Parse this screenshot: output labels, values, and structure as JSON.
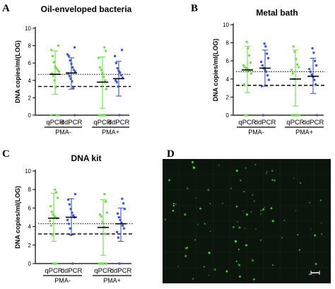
{
  "colors": {
    "qpcr": "#6fe04a",
    "ddpcr": "#3b57c8",
    "axis": "#000000",
    "micro_bg": "#0c150c",
    "micro_dot": "#3fe33a"
  },
  "chart_data": [
    {
      "panel": "A",
      "type": "scatter",
      "title": "Oil-enveloped bacteria",
      "ylabel": "DNA copies/ml(LOG)",
      "ylim": [
        0,
        10
      ],
      "yticks": [
        0,
        2,
        4,
        6,
        8,
        10
      ],
      "categories": [
        "qPCR",
        "ddPCR",
        "qPCR",
        "ddPCR"
      ],
      "groups": [
        {
          "label": "PMA-",
          "members": [
            0,
            1
          ]
        },
        {
          "label": "PMA+",
          "members": [
            2,
            3
          ]
        }
      ],
      "dotted_line": 4.7,
      "dashed_line": 3.3,
      "series": [
        {
          "method": "qpcr",
          "mean": 4.7,
          "err": [
            2.4,
            7.4
          ],
          "points": [
            0,
            0,
            0,
            3.2,
            4.0,
            4.5,
            4.8,
            5.0,
            5.2,
            5.4,
            5.6,
            6.1,
            6.8,
            7.5,
            8.0
          ]
        },
        {
          "method": "ddpcr",
          "mean": 4.85,
          "err": [
            3.0,
            6.6
          ],
          "points": [
            0,
            3.1,
            3.9,
            4.2,
            4.5,
            4.8,
            5.0,
            5.2,
            5.5,
            5.9,
            6.3,
            6.8,
            7.0,
            7.8
          ]
        },
        {
          "method": "qpcr",
          "mean": 3.8,
          "err": [
            0.8,
            6.7
          ],
          "points": [
            0,
            0,
            0,
            0,
            0,
            3.0,
            4.0,
            4.4,
            4.9,
            5.2,
            5.5,
            6.6,
            7.4,
            7.8
          ]
        },
        {
          "method": "ddpcr",
          "mean": 4.2,
          "err": [
            2.2,
            6.2
          ],
          "points": [
            0,
            3.3,
            3.8,
            4.0,
            4.3,
            4.6,
            4.9,
            5.1,
            5.4,
            6.0,
            6.8,
            7.5
          ]
        }
      ]
    },
    {
      "panel": "B",
      "type": "scatter",
      "title": "Metal bath",
      "ylabel": "DNA copies/ml(LOG)",
      "ylim": [
        0,
        10
      ],
      "yticks": [
        0,
        2,
        4,
        6,
        8,
        10
      ],
      "categories": [
        "qPCR",
        "ddPCR",
        "qPCR",
        "ddPCR"
      ],
      "groups": [
        {
          "label": "PMA-",
          "members": [
            0,
            1
          ]
        },
        {
          "label": "PMA+",
          "members": [
            2,
            3
          ]
        }
      ],
      "dotted_line": 4.8,
      "dashed_line": 3.3,
      "series": [
        {
          "method": "qpcr",
          "mean": 5.0,
          "err": [
            2.5,
            7.6
          ],
          "points": [
            0,
            0,
            3.4,
            4.6,
            4.9,
            5.0,
            5.1,
            5.2,
            5.3,
            5.5,
            5.8,
            6.6,
            7.4,
            8.1
          ]
        },
        {
          "method": "ddpcr",
          "mean": 5.2,
          "err": [
            3.2,
            7.2
          ],
          "points": [
            0,
            3.2,
            3.9,
            4.4,
            4.8,
            5.0,
            5.2,
            5.5,
            5.9,
            6.3,
            6.8,
            7.6,
            7.9
          ]
        },
        {
          "method": "qpcr",
          "mean": 4.0,
          "err": [
            1.0,
            7.2
          ],
          "points": [
            0,
            0,
            0,
            0,
            0,
            4.0,
            4.6,
            5.0,
            5.3,
            5.6,
            6.2,
            7.0,
            7.6
          ]
        },
        {
          "method": "ddpcr",
          "mean": 4.3,
          "err": [
            2.4,
            6.3
          ],
          "points": [
            0,
            3.4,
            3.9,
            4.2,
            4.5,
            4.8,
            5.1,
            5.5,
            6.0,
            6.9,
            7.4
          ]
        }
      ]
    },
    {
      "panel": "C",
      "type": "scatter",
      "title": "DNA kit",
      "ylabel": "DNA copies/ml(LOG)",
      "ylim": [
        0,
        10
      ],
      "yticks": [
        0,
        2,
        4,
        6,
        8,
        10
      ],
      "categories": [
        "qPCR",
        "ddPCR",
        "qPCR",
        "ddPCR"
      ],
      "groups": [
        {
          "label": "PMA-",
          "members": [
            0,
            1
          ]
        },
        {
          "label": "PMA+",
          "members": [
            2,
            3
          ]
        }
      ],
      "dotted_line": 4.3,
      "dashed_line": 3.2,
      "series": [
        {
          "method": "qpcr",
          "mean": 4.9,
          "err": [
            2.4,
            7.6
          ],
          "points": [
            0,
            0,
            0,
            3.1,
            4.1,
            4.6,
            4.9,
            5.0,
            5.1,
            5.3,
            5.6,
            6.2,
            7.1,
            7.7,
            8.0
          ]
        },
        {
          "method": "ddpcr",
          "mean": 5.0,
          "err": [
            3.1,
            7.0
          ],
          "points": [
            0,
            3.1,
            3.8,
            4.3,
            4.7,
            5.0,
            5.2,
            5.5,
            5.9,
            6.4,
            6.9,
            7.5
          ]
        },
        {
          "method": "qpcr",
          "mean": 3.9,
          "err": [
            0.9,
            6.9
          ],
          "points": [
            0,
            0,
            0,
            0,
            0,
            3.2,
            4.0,
            4.5,
            5.1,
            5.3,
            5.5,
            6.7,
            7.5
          ]
        },
        {
          "method": "ddpcr",
          "mean": 4.3,
          "err": [
            2.4,
            6.0
          ],
          "points": [
            0,
            2.8,
            3.4,
            3.8,
            4.1,
            4.4,
            4.7,
            5.0,
            5.4,
            5.9,
            6.5,
            7.0
          ]
        }
      ]
    }
  ],
  "micrograph": {
    "panel": "D"
  }
}
